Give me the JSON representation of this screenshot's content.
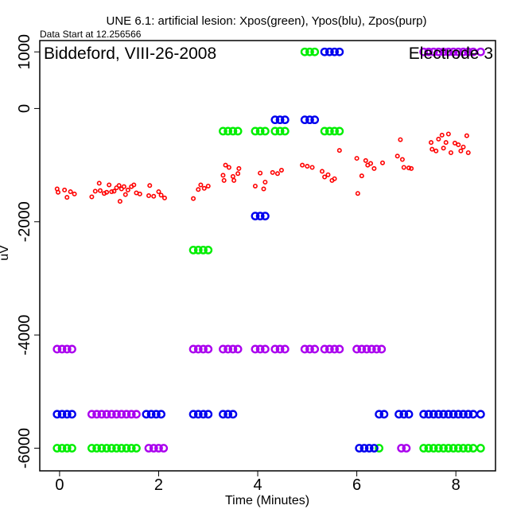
{
  "chart_data": {
    "type": "scatter",
    "title": "UNE 6.1: artificial lesion: Xpos(green), Ypos(blu), Zpos(purp)",
    "subtitle": "Data Start at 12.256566",
    "annotation_left": "Biddeford, VIII-26-2008",
    "annotation_right": "Electrode 3",
    "xlabel": "Time (Minutes)",
    "ylabel": "uV",
    "xlim": [
      -0.4,
      8.8
    ],
    "ylim": [
      -6400,
      1200
    ],
    "xticks": [
      0,
      2,
      4,
      6,
      8
    ],
    "yticks": [
      -6000,
      -4000,
      -2000,
      0,
      1000
    ],
    "x_tick_labels": [
      "0",
      "2",
      "4",
      "6",
      "8"
    ],
    "y_tick_labels": [
      "-6000",
      "-4000",
      "-2000",
      "0",
      "1000"
    ],
    "grid": false,
    "series": [
      {
        "color": "#ff0000",
        "marker": "small-circle",
        "points": [
          [
            -0.05,
            -1420
          ],
          [
            -0.03,
            -1480
          ],
          [
            0.1,
            -1440
          ],
          [
            0.15,
            -1570
          ],
          [
            0.22,
            -1470
          ],
          [
            0.3,
            -1510
          ],
          [
            0.65,
            -1560
          ],
          [
            0.72,
            -1460
          ],
          [
            0.8,
            -1320
          ],
          [
            0.82,
            -1450
          ],
          [
            0.9,
            -1500
          ],
          [
            0.95,
            -1480
          ],
          [
            1.0,
            -1350
          ],
          [
            1.05,
            -1470
          ],
          [
            1.1,
            -1460
          ],
          [
            1.15,
            -1400
          ],
          [
            1.2,
            -1360
          ],
          [
            1.25,
            -1420
          ],
          [
            1.3,
            -1380
          ],
          [
            1.33,
            -1520
          ],
          [
            1.38,
            -1440
          ],
          [
            1.45,
            -1380
          ],
          [
            1.5,
            -1350
          ],
          [
            1.55,
            -1490
          ],
          [
            1.62,
            -1510
          ],
          [
            1.22,
            -1640
          ],
          [
            1.8,
            -1540
          ],
          [
            1.82,
            -1360
          ],
          [
            1.9,
            -1550
          ],
          [
            2.0,
            -1470
          ],
          [
            2.05,
            -1530
          ],
          [
            2.12,
            -1580
          ],
          [
            2.7,
            -1590
          ],
          [
            2.8,
            -1430
          ],
          [
            2.85,
            -1350
          ],
          [
            2.92,
            -1410
          ],
          [
            3.0,
            -1370
          ],
          [
            3.3,
            -1180
          ],
          [
            3.32,
            -1270
          ],
          [
            3.35,
            -1000
          ],
          [
            3.42,
            -1040
          ],
          [
            3.5,
            -1200
          ],
          [
            3.52,
            -1270
          ],
          [
            3.6,
            -1150
          ],
          [
            3.62,
            -1060
          ],
          [
            3.95,
            -1370
          ],
          [
            4.05,
            -1140
          ],
          [
            4.12,
            -1420
          ],
          [
            4.15,
            -1300
          ],
          [
            4.3,
            -1130
          ],
          [
            4.4,
            -1150
          ],
          [
            4.48,
            -1090
          ],
          [
            4.9,
            -1000
          ],
          [
            5.0,
            -1020
          ],
          [
            5.1,
            -1040
          ],
          [
            5.3,
            -1110
          ],
          [
            5.35,
            -1210
          ],
          [
            5.42,
            -1170
          ],
          [
            5.5,
            -1270
          ],
          [
            5.55,
            -1240
          ],
          [
            5.65,
            -740
          ],
          [
            6.0,
            -880
          ],
          [
            6.02,
            -1500
          ],
          [
            6.1,
            -1190
          ],
          [
            6.18,
            -920
          ],
          [
            6.22,
            -1000
          ],
          [
            6.28,
            -970
          ],
          [
            6.35,
            -1060
          ],
          [
            6.52,
            -960
          ],
          [
            6.82,
            -840
          ],
          [
            6.88,
            -550
          ],
          [
            6.92,
            -900
          ],
          [
            6.95,
            -1040
          ],
          [
            7.05,
            -1050
          ],
          [
            7.1,
            -1060
          ],
          [
            7.5,
            -600
          ],
          [
            7.52,
            -720
          ],
          [
            7.6,
            -750
          ],
          [
            7.65,
            -540
          ],
          [
            7.72,
            -470
          ],
          [
            7.75,
            -700
          ],
          [
            7.8,
            -600
          ],
          [
            7.85,
            -450
          ],
          [
            7.9,
            -780
          ],
          [
            7.98,
            -610
          ],
          [
            8.05,
            -640
          ],
          [
            8.1,
            -750
          ],
          [
            8.15,
            -680
          ],
          [
            8.22,
            -480
          ],
          [
            8.25,
            -780
          ]
        ]
      },
      {
        "color": "#00ee00",
        "marker": "open-circle",
        "points": [
          [
            -0.05,
            -6000
          ],
          [
            0.05,
            -6000
          ],
          [
            0.15,
            -6000
          ],
          [
            0.25,
            -6000
          ],
          [
            0.65,
            -6000
          ],
          [
            0.75,
            -6000
          ],
          [
            0.85,
            -6000
          ],
          [
            0.95,
            -6000
          ],
          [
            1.05,
            -6000
          ],
          [
            1.15,
            -6000
          ],
          [
            1.25,
            -6000
          ],
          [
            1.35,
            -6000
          ],
          [
            1.45,
            -6000
          ],
          [
            1.55,
            -6000
          ],
          [
            2.7,
            -2500
          ],
          [
            2.8,
            -2500
          ],
          [
            2.9,
            -2500
          ],
          [
            3.0,
            -2500
          ],
          [
            3.3,
            -400
          ],
          [
            3.4,
            -400
          ],
          [
            3.5,
            -400
          ],
          [
            3.6,
            -400
          ],
          [
            3.95,
            -400
          ],
          [
            4.05,
            -400
          ],
          [
            4.15,
            -400
          ],
          [
            4.35,
            -400
          ],
          [
            4.45,
            -400
          ],
          [
            4.55,
            -400
          ],
          [
            4.95,
            1000
          ],
          [
            5.05,
            1000
          ],
          [
            5.15,
            1000
          ],
          [
            5.35,
            -400
          ],
          [
            5.45,
            -400
          ],
          [
            5.55,
            -400
          ],
          [
            5.65,
            -400
          ],
          [
            6.45,
            -6000
          ],
          [
            7.35,
            -6000
          ],
          [
            7.45,
            -6000
          ],
          [
            7.55,
            -6000
          ],
          [
            7.65,
            -6000
          ],
          [
            7.75,
            -6000
          ],
          [
            7.85,
            -6000
          ],
          [
            7.95,
            -6000
          ],
          [
            8.05,
            -6000
          ],
          [
            8.15,
            -6000
          ],
          [
            8.25,
            -6000
          ],
          [
            8.35,
            -6000
          ],
          [
            8.5,
            -6000
          ]
        ]
      },
      {
        "color": "#0000ee",
        "marker": "open-circle",
        "points": [
          [
            -0.05,
            -5400
          ],
          [
            0.05,
            -5400
          ],
          [
            0.15,
            -5400
          ],
          [
            0.25,
            -5400
          ],
          [
            1.75,
            -5400
          ],
          [
            1.85,
            -5400
          ],
          [
            1.95,
            -5400
          ],
          [
            2.05,
            -5400
          ],
          [
            2.7,
            -5400
          ],
          [
            2.8,
            -5400
          ],
          [
            2.9,
            -5400
          ],
          [
            3.0,
            -5400
          ],
          [
            3.3,
            -5400
          ],
          [
            3.4,
            -5400
          ],
          [
            3.5,
            -5400
          ],
          [
            3.95,
            -1900
          ],
          [
            4.05,
            -1900
          ],
          [
            4.15,
            -1900
          ],
          [
            4.35,
            -200
          ],
          [
            4.45,
            -200
          ],
          [
            4.55,
            -200
          ],
          [
            4.95,
            -200
          ],
          [
            5.05,
            -200
          ],
          [
            5.15,
            -200
          ],
          [
            5.35,
            1000
          ],
          [
            5.45,
            1000
          ],
          [
            5.55,
            1000
          ],
          [
            5.65,
            1000
          ],
          [
            6.05,
            -6000
          ],
          [
            6.15,
            -6000
          ],
          [
            6.25,
            -6000
          ],
          [
            6.35,
            -6000
          ],
          [
            6.45,
            -5400
          ],
          [
            6.55,
            -5400
          ],
          [
            6.85,
            -5400
          ],
          [
            6.95,
            -5400
          ],
          [
            7.05,
            -5400
          ],
          [
            7.35,
            -5400
          ],
          [
            7.45,
            -5400
          ],
          [
            7.55,
            -5400
          ],
          [
            7.65,
            -5400
          ],
          [
            7.75,
            -5400
          ],
          [
            7.85,
            -5400
          ],
          [
            7.95,
            -5400
          ],
          [
            8.05,
            -5400
          ],
          [
            8.15,
            -5400
          ],
          [
            8.25,
            -5400
          ],
          [
            8.35,
            -5400
          ],
          [
            8.5,
            -5400
          ]
        ]
      },
      {
        "color": "#aa00ee",
        "marker": "open-circle",
        "points": [
          [
            -0.05,
            -4250
          ],
          [
            0.05,
            -4250
          ],
          [
            0.15,
            -4250
          ],
          [
            0.25,
            -4250
          ],
          [
            0.65,
            -5400
          ],
          [
            0.75,
            -5400
          ],
          [
            0.85,
            -5400
          ],
          [
            0.95,
            -5400
          ],
          [
            1.05,
            -5400
          ],
          [
            1.15,
            -5400
          ],
          [
            1.25,
            -5400
          ],
          [
            1.35,
            -5400
          ],
          [
            1.45,
            -5400
          ],
          [
            1.55,
            -5400
          ],
          [
            1.8,
            -6000
          ],
          [
            1.9,
            -6000
          ],
          [
            2.0,
            -6000
          ],
          [
            2.1,
            -6000
          ],
          [
            2.7,
            -4250
          ],
          [
            2.8,
            -4250
          ],
          [
            2.9,
            -4250
          ],
          [
            3.0,
            -4250
          ],
          [
            3.3,
            -4250
          ],
          [
            3.4,
            -4250
          ],
          [
            3.5,
            -4250
          ],
          [
            3.6,
            -4250
          ],
          [
            3.95,
            -4250
          ],
          [
            4.05,
            -4250
          ],
          [
            4.15,
            -4250
          ],
          [
            4.35,
            -4250
          ],
          [
            4.45,
            -4250
          ],
          [
            4.55,
            -4250
          ],
          [
            4.95,
            -4250
          ],
          [
            5.05,
            -4250
          ],
          [
            5.15,
            -4250
          ],
          [
            5.35,
            -4250
          ],
          [
            5.45,
            -4250
          ],
          [
            5.55,
            -4250
          ],
          [
            5.65,
            -4250
          ],
          [
            6.0,
            -4250
          ],
          [
            6.1,
            -4250
          ],
          [
            6.2,
            -4250
          ],
          [
            6.3,
            -4250
          ],
          [
            6.4,
            -4250
          ],
          [
            6.5,
            -4250
          ],
          [
            6.9,
            -6000
          ],
          [
            7.0,
            -6000
          ],
          [
            7.35,
            1000
          ],
          [
            7.45,
            1000
          ],
          [
            7.55,
            1000
          ],
          [
            7.65,
            1000
          ],
          [
            7.75,
            1000
          ],
          [
            7.85,
            1000
          ],
          [
            7.95,
            1000
          ],
          [
            8.05,
            1000
          ],
          [
            8.15,
            1000
          ],
          [
            8.25,
            1000
          ],
          [
            8.35,
            1000
          ],
          [
            8.5,
            1000
          ]
        ]
      }
    ]
  }
}
